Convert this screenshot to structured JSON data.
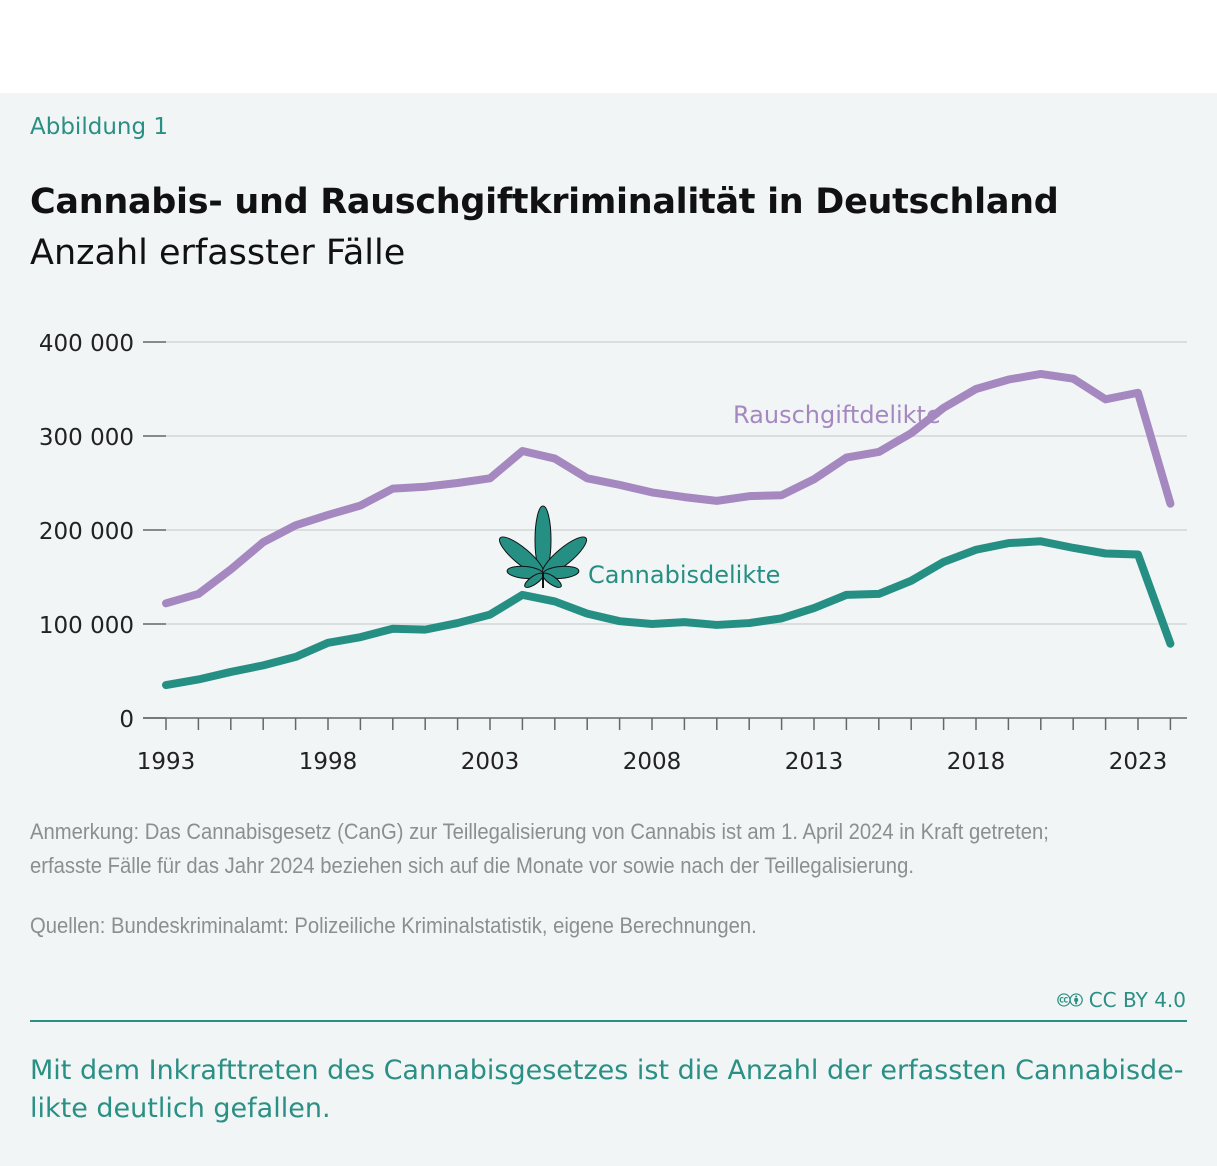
{
  "figure_label": "Abbildung 1",
  "chart_data": {
    "type": "line",
    "title": "Cannabis- und Rauschgiftkriminalität in Deutschland",
    "subtitle": "Anzahl erfasster Fälle",
    "x": [
      1993,
      1994,
      1995,
      1996,
      1997,
      1998,
      1999,
      2000,
      2001,
      2002,
      2003,
      2004,
      2005,
      2006,
      2007,
      2008,
      2009,
      2010,
      2011,
      2012,
      2013,
      2014,
      2015,
      2016,
      2017,
      2018,
      2019,
      2020,
      2021,
      2022,
      2023,
      2024
    ],
    "xticks": [
      1993,
      1998,
      2003,
      2008,
      2013,
      2018,
      2023
    ],
    "yticks": [
      0,
      100000,
      200000,
      300000,
      400000
    ],
    "ytick_labels": [
      "0",
      "100 000",
      "200 000",
      "300 000",
      "400 000"
    ],
    "ylim": [
      0,
      400000
    ],
    "grid": "horizontal",
    "series": [
      {
        "name": "Rauschgiftdelikte",
        "color": "#a688c0",
        "values": [
          122000,
          132000,
          158000,
          187000,
          205000,
          216000,
          226000,
          244000,
          246000,
          250000,
          255000,
          284000,
          276000,
          255000,
          248000,
          240000,
          235000,
          231000,
          236000,
          237000,
          254000,
          277000,
          283000,
          303000,
          330000,
          350000,
          360000,
          366000,
          361000,
          339000,
          346000,
          228000
        ]
      },
      {
        "name": "Cannabisdelikte",
        "color": "#268f84",
        "values": [
          35000,
          41000,
          49000,
          56000,
          65000,
          80000,
          86000,
          95000,
          94000,
          101000,
          110000,
          131000,
          124000,
          111000,
          103000,
          100000,
          102000,
          99000,
          101000,
          106000,
          117000,
          131000,
          132000,
          146000,
          166000,
          179000,
          186000,
          188000,
          181000,
          175000,
          174000,
          79000
        ]
      }
    ],
    "icon": "cannabis-leaf-icon"
  },
  "notes": {
    "line1": "Anmerkung: Das Cannabisgesetz (CanG) zur Teillegalisierung von Cannabis ist am 1. April 2024 in Kraft getreten;",
    "line2": "erfasste Fälle für das Jahr 2024 beziehen sich auf die Monate vor sowie nach der Teillegalisierung.",
    "source": "Quellen: Bundeskriminalamt: Polizeiliche Kriminalstatistik, eigene Berechnungen."
  },
  "license": "CC BY 4.0",
  "caption": "Mit dem Inkrafttreten des Cannabisgesetzes ist die Anzahl der erfassten Cannabisde-likte deutlich gefallen."
}
